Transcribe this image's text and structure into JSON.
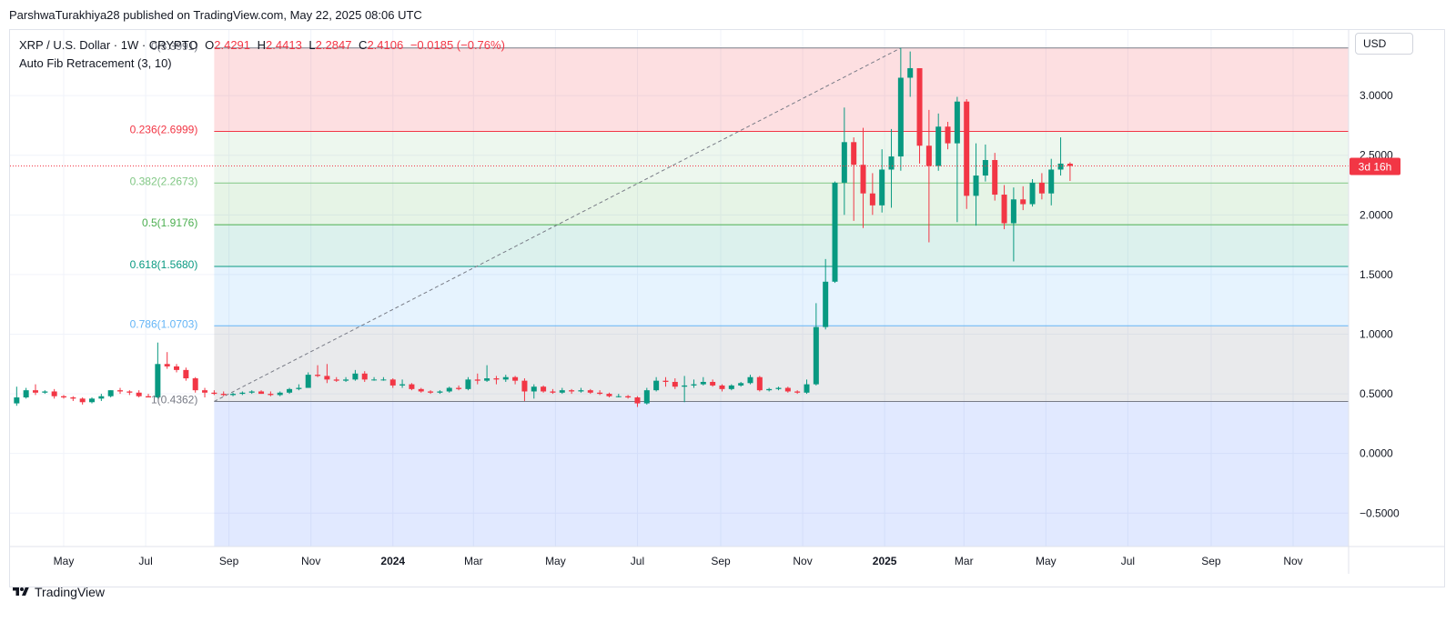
{
  "header": {
    "attribution": "ParshwaTurakhiya28 published on TradingView.com, May 22, 2025 08:06 UTC"
  },
  "legend": {
    "symbol": "XRP / U.S. Dollar · 1W · CRYPTO",
    "open_label": "O",
    "open": "2.4291",
    "high_label": "H",
    "high": "2.4413",
    "low_label": "L",
    "low": "2.2847",
    "close_label": "C",
    "close": "2.4106",
    "change": "−0.0185 (−0.76%)",
    "indicator": "Auto Fib Retracement (3, 10)"
  },
  "currency": "USD",
  "countdown": "3d 16h",
  "footer": {
    "brand": "TradingView"
  },
  "colors": {
    "up": "#089981",
    "down": "#f23645",
    "grid": "#f0f3fa",
    "axis_text": "#131722"
  },
  "chart_data": {
    "type": "candlestick",
    "title": "XRP / U.S. Dollar",
    "interval": "1W",
    "ylim": [
      -0.78,
      3.55
    ],
    "y_ticks": [
      "3.0000",
      "2.5000",
      "2.0000",
      "1.5000",
      "1.0000",
      "0.5000",
      "0.0000",
      "−0.5000"
    ],
    "y_tick_values": [
      3.0,
      2.5,
      2.0,
      1.5,
      1.0,
      0.5,
      0.0,
      -0.5
    ],
    "x_labels": [
      {
        "label": "May",
        "date": "2023-05-01",
        "bold": false
      },
      {
        "label": "Jul",
        "date": "2023-07-01",
        "bold": false
      },
      {
        "label": "Sep",
        "date": "2023-09-01",
        "bold": false
      },
      {
        "label": "Nov",
        "date": "2023-11-01",
        "bold": false
      },
      {
        "label": "2024",
        "date": "2024-01-01",
        "bold": true
      },
      {
        "label": "Mar",
        "date": "2024-03-01",
        "bold": false
      },
      {
        "label": "May",
        "date": "2024-05-01",
        "bold": false
      },
      {
        "label": "Jul",
        "date": "2024-07-01",
        "bold": false
      },
      {
        "label": "Sep",
        "date": "2024-09-01",
        "bold": false
      },
      {
        "label": "Nov",
        "date": "2024-11-01",
        "bold": false
      },
      {
        "label": "2025",
        "date": "2025-01-01",
        "bold": true
      },
      {
        "label": "Mar",
        "date": "2025-03-01",
        "bold": false
      },
      {
        "label": "May",
        "date": "2025-05-01",
        "bold": false
      },
      {
        "label": "Jul",
        "date": "2025-07-01",
        "bold": false
      },
      {
        "label": "Sep",
        "date": "2025-09-01",
        "bold": false
      },
      {
        "label": "Nov",
        "date": "2025-11-01",
        "bold": false
      }
    ],
    "candles": [
      {
        "t": "2023-03-27",
        "o": 0.42,
        "h": 0.56,
        "l": 0.4,
        "c": 0.47
      },
      {
        "t": "2023-04-03",
        "o": 0.47,
        "h": 0.55,
        "l": 0.46,
        "c": 0.53
      },
      {
        "t": "2023-04-10",
        "o": 0.53,
        "h": 0.58,
        "l": 0.49,
        "c": 0.51
      },
      {
        "t": "2023-04-17",
        "o": 0.51,
        "h": 0.53,
        "l": 0.5,
        "c": 0.52
      },
      {
        "t": "2023-04-24",
        "o": 0.52,
        "h": 0.54,
        "l": 0.46,
        "c": 0.48
      },
      {
        "t": "2023-05-01",
        "o": 0.48,
        "h": 0.49,
        "l": 0.46,
        "c": 0.47
      },
      {
        "t": "2023-05-08",
        "o": 0.47,
        "h": 0.48,
        "l": 0.44,
        "c": 0.46
      },
      {
        "t": "2023-05-15",
        "o": 0.46,
        "h": 0.47,
        "l": 0.41,
        "c": 0.43
      },
      {
        "t": "2023-05-22",
        "o": 0.43,
        "h": 0.47,
        "l": 0.42,
        "c": 0.46
      },
      {
        "t": "2023-05-29",
        "o": 0.46,
        "h": 0.5,
        "l": 0.44,
        "c": 0.48
      },
      {
        "t": "2023-06-05",
        "o": 0.48,
        "h": 0.53,
        "l": 0.47,
        "c": 0.53
      },
      {
        "t": "2023-06-12",
        "o": 0.53,
        "h": 0.55,
        "l": 0.5,
        "c": 0.52
      },
      {
        "t": "2023-06-19",
        "o": 0.52,
        "h": 0.53,
        "l": 0.49,
        "c": 0.51
      },
      {
        "t": "2023-06-26",
        "o": 0.51,
        "h": 0.53,
        "l": 0.47,
        "c": 0.48
      },
      {
        "t": "2023-07-03",
        "o": 0.48,
        "h": 0.5,
        "l": 0.47,
        "c": 0.47
      },
      {
        "t": "2023-07-10",
        "o": 0.47,
        "h": 0.93,
        "l": 0.46,
        "c": 0.75
      },
      {
        "t": "2023-07-17",
        "o": 0.75,
        "h": 0.85,
        "l": 0.71,
        "c": 0.73
      },
      {
        "t": "2023-07-24",
        "o": 0.73,
        "h": 0.75,
        "l": 0.68,
        "c": 0.7
      },
      {
        "t": "2023-07-31",
        "o": 0.7,
        "h": 0.72,
        "l": 0.61,
        "c": 0.63
      },
      {
        "t": "2023-08-07",
        "o": 0.63,
        "h": 0.64,
        "l": 0.51,
        "c": 0.53
      },
      {
        "t": "2023-08-14",
        "o": 0.53,
        "h": 0.55,
        "l": 0.47,
        "c": 0.51
      },
      {
        "t": "2023-08-21",
        "o": 0.51,
        "h": 0.53,
        "l": 0.49,
        "c": 0.5
      },
      {
        "t": "2023-08-28",
        "o": 0.5,
        "h": 0.52,
        "l": 0.48,
        "c": 0.49
      },
      {
        "t": "2023-09-04",
        "o": 0.49,
        "h": 0.51,
        "l": 0.48,
        "c": 0.5
      },
      {
        "t": "2023-09-11",
        "o": 0.5,
        "h": 0.52,
        "l": 0.49,
        "c": 0.51
      },
      {
        "t": "2023-09-18",
        "o": 0.51,
        "h": 0.53,
        "l": 0.5,
        "c": 0.52
      },
      {
        "t": "2023-09-25",
        "o": 0.52,
        "h": 0.53,
        "l": 0.5,
        "c": 0.5
      },
      {
        "t": "2023-10-02",
        "o": 0.5,
        "h": 0.52,
        "l": 0.48,
        "c": 0.49
      },
      {
        "t": "2023-10-09",
        "o": 0.49,
        "h": 0.52,
        "l": 0.48,
        "c": 0.51
      },
      {
        "t": "2023-10-16",
        "o": 0.51,
        "h": 0.55,
        "l": 0.5,
        "c": 0.54
      },
      {
        "t": "2023-10-23",
        "o": 0.54,
        "h": 0.58,
        "l": 0.53,
        "c": 0.55
      },
      {
        "t": "2023-10-30",
        "o": 0.55,
        "h": 0.68,
        "l": 0.55,
        "c": 0.66
      },
      {
        "t": "2023-11-06",
        "o": 0.66,
        "h": 0.74,
        "l": 0.64,
        "c": 0.65
      },
      {
        "t": "2023-11-13",
        "o": 0.65,
        "h": 0.75,
        "l": 0.59,
        "c": 0.62
      },
      {
        "t": "2023-11-20",
        "o": 0.62,
        "h": 0.64,
        "l": 0.6,
        "c": 0.61
      },
      {
        "t": "2023-11-27",
        "o": 0.61,
        "h": 0.64,
        "l": 0.6,
        "c": 0.62
      },
      {
        "t": "2023-12-04",
        "o": 0.62,
        "h": 0.7,
        "l": 0.61,
        "c": 0.67
      },
      {
        "t": "2023-12-11",
        "o": 0.67,
        "h": 0.69,
        "l": 0.6,
        "c": 0.62
      },
      {
        "t": "2023-12-18",
        "o": 0.62,
        "h": 0.64,
        "l": 0.61,
        "c": 0.62
      },
      {
        "t": "2023-12-25",
        "o": 0.62,
        "h": 0.64,
        "l": 0.61,
        "c": 0.62
      },
      {
        "t": "2024-01-01",
        "o": 0.62,
        "h": 0.63,
        "l": 0.55,
        "c": 0.57
      },
      {
        "t": "2024-01-08",
        "o": 0.57,
        "h": 0.62,
        "l": 0.55,
        "c": 0.58
      },
      {
        "t": "2024-01-15",
        "o": 0.58,
        "h": 0.59,
        "l": 0.53,
        "c": 0.54
      },
      {
        "t": "2024-01-22",
        "o": 0.54,
        "h": 0.55,
        "l": 0.51,
        "c": 0.52
      },
      {
        "t": "2024-01-29",
        "o": 0.52,
        "h": 0.53,
        "l": 0.5,
        "c": 0.51
      },
      {
        "t": "2024-02-05",
        "o": 0.51,
        "h": 0.53,
        "l": 0.5,
        "c": 0.52
      },
      {
        "t": "2024-02-12",
        "o": 0.52,
        "h": 0.56,
        "l": 0.51,
        "c": 0.55
      },
      {
        "t": "2024-02-19",
        "o": 0.55,
        "h": 0.57,
        "l": 0.53,
        "c": 0.54
      },
      {
        "t": "2024-02-26",
        "o": 0.54,
        "h": 0.64,
        "l": 0.53,
        "c": 0.62
      },
      {
        "t": "2024-03-04",
        "o": 0.62,
        "h": 0.67,
        "l": 0.58,
        "c": 0.61
      },
      {
        "t": "2024-03-11",
        "o": 0.61,
        "h": 0.74,
        "l": 0.6,
        "c": 0.63
      },
      {
        "t": "2024-03-18",
        "o": 0.63,
        "h": 0.65,
        "l": 0.58,
        "c": 0.62
      },
      {
        "t": "2024-03-25",
        "o": 0.62,
        "h": 0.66,
        "l": 0.6,
        "c": 0.64
      },
      {
        "t": "2024-04-01",
        "o": 0.64,
        "h": 0.65,
        "l": 0.58,
        "c": 0.61
      },
      {
        "t": "2024-04-08",
        "o": 0.61,
        "h": 0.63,
        "l": 0.44,
        "c": 0.52
      },
      {
        "t": "2024-04-15",
        "o": 0.52,
        "h": 0.58,
        "l": 0.46,
        "c": 0.56
      },
      {
        "t": "2024-04-22",
        "o": 0.56,
        "h": 0.57,
        "l": 0.51,
        "c": 0.52
      },
      {
        "t": "2024-04-29",
        "o": 0.52,
        "h": 0.54,
        "l": 0.5,
        "c": 0.51
      },
      {
        "t": "2024-05-06",
        "o": 0.51,
        "h": 0.55,
        "l": 0.5,
        "c": 0.53
      },
      {
        "t": "2024-05-13",
        "o": 0.53,
        "h": 0.54,
        "l": 0.5,
        "c": 0.52
      },
      {
        "t": "2024-05-20",
        "o": 0.52,
        "h": 0.55,
        "l": 0.51,
        "c": 0.53
      },
      {
        "t": "2024-05-27",
        "o": 0.53,
        "h": 0.54,
        "l": 0.5,
        "c": 0.51
      },
      {
        "t": "2024-06-03",
        "o": 0.51,
        "h": 0.53,
        "l": 0.49,
        "c": 0.5
      },
      {
        "t": "2024-06-10",
        "o": 0.5,
        "h": 0.51,
        "l": 0.47,
        "c": 0.48
      },
      {
        "t": "2024-06-17",
        "o": 0.48,
        "h": 0.5,
        "l": 0.47,
        "c": 0.48
      },
      {
        "t": "2024-06-24",
        "o": 0.48,
        "h": 0.49,
        "l": 0.46,
        "c": 0.47
      },
      {
        "t": "2024-07-01",
        "o": 0.47,
        "h": 0.48,
        "l": 0.39,
        "c": 0.42
      },
      {
        "t": "2024-07-08",
        "o": 0.42,
        "h": 0.55,
        "l": 0.41,
        "c": 0.53
      },
      {
        "t": "2024-07-15",
        "o": 0.53,
        "h": 0.64,
        "l": 0.52,
        "c": 0.61
      },
      {
        "t": "2024-07-22",
        "o": 0.61,
        "h": 0.64,
        "l": 0.56,
        "c": 0.6
      },
      {
        "t": "2024-07-29",
        "o": 0.6,
        "h": 0.63,
        "l": 0.54,
        "c": 0.56
      },
      {
        "t": "2024-08-05",
        "o": 0.56,
        "h": 0.65,
        "l": 0.43,
        "c": 0.57
      },
      {
        "t": "2024-08-12",
        "o": 0.57,
        "h": 0.62,
        "l": 0.55,
        "c": 0.58
      },
      {
        "t": "2024-08-19",
        "o": 0.58,
        "h": 0.64,
        "l": 0.57,
        "c": 0.6
      },
      {
        "t": "2024-08-26",
        "o": 0.6,
        "h": 0.62,
        "l": 0.56,
        "c": 0.57
      },
      {
        "t": "2024-09-02",
        "o": 0.57,
        "h": 0.58,
        "l": 0.52,
        "c": 0.54
      },
      {
        "t": "2024-09-09",
        "o": 0.54,
        "h": 0.58,
        "l": 0.53,
        "c": 0.57
      },
      {
        "t": "2024-09-16",
        "o": 0.57,
        "h": 0.6,
        "l": 0.56,
        "c": 0.59
      },
      {
        "t": "2024-09-23",
        "o": 0.59,
        "h": 0.66,
        "l": 0.58,
        "c": 0.64
      },
      {
        "t": "2024-09-30",
        "o": 0.64,
        "h": 0.65,
        "l": 0.52,
        "c": 0.53
      },
      {
        "t": "2024-10-07",
        "o": 0.53,
        "h": 0.55,
        "l": 0.52,
        "c": 0.54
      },
      {
        "t": "2024-10-14",
        "o": 0.54,
        "h": 0.56,
        "l": 0.53,
        "c": 0.55
      },
      {
        "t": "2024-10-21",
        "o": 0.55,
        "h": 0.56,
        "l": 0.51,
        "c": 0.52
      },
      {
        "t": "2024-10-28",
        "o": 0.52,
        "h": 0.53,
        "l": 0.5,
        "c": 0.51
      },
      {
        "t": "2024-11-04",
        "o": 0.51,
        "h": 0.62,
        "l": 0.5,
        "c": 0.58
      },
      {
        "t": "2024-11-11",
        "o": 0.58,
        "h": 1.26,
        "l": 0.57,
        "c": 1.06
      },
      {
        "t": "2024-11-18",
        "o": 1.06,
        "h": 1.63,
        "l": 1.04,
        "c": 1.44
      },
      {
        "t": "2024-11-25",
        "o": 1.44,
        "h": 2.28,
        "l": 1.43,
        "c": 2.27
      },
      {
        "t": "2024-12-02",
        "o": 2.27,
        "h": 2.9,
        "l": 2.0,
        "c": 2.61
      },
      {
        "t": "2024-12-09",
        "o": 2.61,
        "h": 2.65,
        "l": 1.95,
        "c": 2.42
      },
      {
        "t": "2024-12-16",
        "o": 2.42,
        "h": 2.73,
        "l": 1.89,
        "c": 2.18
      },
      {
        "t": "2024-12-23",
        "o": 2.18,
        "h": 2.35,
        "l": 2.0,
        "c": 2.08
      },
      {
        "t": "2024-12-30",
        "o": 2.08,
        "h": 2.55,
        "l": 2.02,
        "c": 2.38
      },
      {
        "t": "2025-01-06",
        "o": 2.38,
        "h": 2.72,
        "l": 2.06,
        "c": 2.49
      },
      {
        "t": "2025-01-13",
        "o": 2.49,
        "h": 3.4,
        "l": 2.37,
        "c": 3.15
      },
      {
        "t": "2025-01-20",
        "o": 3.15,
        "h": 3.37,
        "l": 2.99,
        "c": 3.23
      },
      {
        "t": "2025-01-27",
        "o": 3.23,
        "h": 3.22,
        "l": 2.43,
        "c": 2.58
      },
      {
        "t": "2025-02-03",
        "o": 2.58,
        "h": 2.88,
        "l": 1.77,
        "c": 2.41
      },
      {
        "t": "2025-02-10",
        "o": 2.41,
        "h": 2.85,
        "l": 2.37,
        "c": 2.74
      },
      {
        "t": "2025-02-17",
        "o": 2.74,
        "h": 2.78,
        "l": 2.55,
        "c": 2.6
      },
      {
        "t": "2025-02-24",
        "o": 2.6,
        "h": 2.99,
        "l": 1.94,
        "c": 2.95
      },
      {
        "t": "2025-03-03",
        "o": 2.95,
        "h": 2.97,
        "l": 2.05,
        "c": 2.16
      },
      {
        "t": "2025-03-10",
        "o": 2.16,
        "h": 2.6,
        "l": 1.91,
        "c": 2.33
      },
      {
        "t": "2025-03-17",
        "o": 2.33,
        "h": 2.59,
        "l": 2.28,
        "c": 2.46
      },
      {
        "t": "2025-03-24",
        "o": 2.46,
        "h": 2.52,
        "l": 2.12,
        "c": 2.17
      },
      {
        "t": "2025-03-31",
        "o": 2.17,
        "h": 2.25,
        "l": 1.88,
        "c": 1.93
      },
      {
        "t": "2025-04-07",
        "o": 1.93,
        "h": 2.23,
        "l": 1.61,
        "c": 2.13
      },
      {
        "t": "2025-04-14",
        "o": 2.13,
        "h": 2.24,
        "l": 2.04,
        "c": 2.09
      },
      {
        "t": "2025-04-21",
        "o": 2.09,
        "h": 2.3,
        "l": 2.07,
        "c": 2.27
      },
      {
        "t": "2025-04-28",
        "o": 2.27,
        "h": 2.35,
        "l": 2.13,
        "c": 2.18
      },
      {
        "t": "2025-05-05",
        "o": 2.18,
        "h": 2.47,
        "l": 2.08,
        "c": 2.38
      },
      {
        "t": "2025-05-12",
        "o": 2.38,
        "h": 2.65,
        "l": 2.33,
        "c": 2.43
      },
      {
        "t": "2025-05-19",
        "o": 2.4291,
        "h": 2.4413,
        "l": 2.2847,
        "c": 2.4106
      }
    ],
    "fib": {
      "name": "Auto Fib Retracement (3, 10)",
      "start_date": "2023-08-21",
      "end_date": "2025-01-13",
      "extend_to": "2026-01-12",
      "levels": [
        {
          "label": "0(3.3991)",
          "value": 3.3991,
          "line": "#787b86",
          "fill": null
        },
        {
          "label": "0.236(2.6999)",
          "value": 2.6999,
          "line": "#f23645",
          "fill": "rgba(242,54,69,0.16)"
        },
        {
          "label": "0.382(2.2673)",
          "value": 2.2673,
          "line": "#81c784",
          "fill": "rgba(129,199,132,0.14)"
        },
        {
          "label": "0.5(1.9176)",
          "value": 1.9176,
          "line": "#4caf50",
          "fill": "rgba(76,175,80,0.14)"
        },
        {
          "label": "0.618(1.5680)",
          "value": 1.568,
          "line": "#089981",
          "fill": "rgba(8,153,129,0.14)"
        },
        {
          "label": "0.786(1.0703)",
          "value": 1.0703,
          "line": "#64b5f6",
          "fill": "rgba(100,181,246,0.16)"
        },
        {
          "label": "1(0.4362)",
          "value": 0.4362,
          "line": "#787b86",
          "fill": "rgba(120,123,134,0.16)"
        }
      ],
      "below_fill": "rgba(41,98,255,0.14)"
    }
  }
}
